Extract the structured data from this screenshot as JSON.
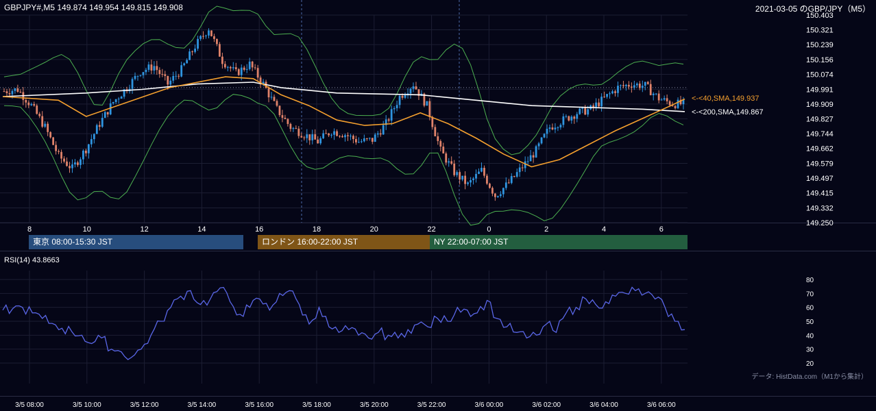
{
  "header": {
    "symbol_info": "GBPJPY#,M5 149.874 149.954 149.815 149.908",
    "title": "2021-03-05 のGBP/JPY（M5）"
  },
  "sessions": [
    {
      "label": "東京 08:00-15:30 JST",
      "color": "#274d7d"
    },
    {
      "label": "ロンドン 16:00-22:00 JST",
      "color": "#7f5517"
    },
    {
      "label": "NY 22:00-07:00 JST",
      "color": "#235e3f"
    }
  ],
  "rsi": {
    "title": "RSI(14) 43.8663"
  },
  "source_note": "データ: HistData.com（M1から集計）",
  "colors": {
    "background": "#050617",
    "up_candle": "#2f95e0",
    "down_candle": "#e0836a",
    "sma40": "#f5a02e",
    "sma200": "#ffffff",
    "bollinger": "#4caf50",
    "rsi_line": "#5a67e8",
    "grid": "#1c1e33"
  },
  "chart_data": [
    {
      "type": "candlestick",
      "title": "GBPJPY#,M5",
      "ylim": [
        149.25,
        150.403
      ],
      "y_ticks": [
        "150.403",
        "150.321",
        "150.239",
        "150.156",
        "150.074",
        "149.991",
        "149.909",
        "149.827",
        "149.744",
        "149.662",
        "149.579",
        "149.497",
        "149.415",
        "149.332",
        "149.250"
      ],
      "x_ticks": [
        "8",
        "10",
        "12",
        "14",
        "16",
        "18",
        "20",
        "22",
        "0",
        "2",
        "4",
        "6"
      ],
      "last_close": 149.908,
      "ma_labels": [
        {
          "label": "<-<40,SMA,149.937",
          "value": 149.937
        },
        {
          "label": "<-<200,SMA,149.867",
          "value": 149.867
        }
      ],
      "price_path": [
        [
          0,
          149.98
        ],
        [
          1,
          149.99
        ],
        [
          2,
          149.9
        ],
        [
          3,
          149.78
        ],
        [
          4,
          149.62
        ],
        [
          5,
          149.55
        ],
        [
          6,
          149.66
        ],
        [
          7,
          149.8
        ],
        [
          8,
          149.92
        ],
        [
          9,
          150.0
        ],
        [
          10,
          150.09
        ],
        [
          11,
          150.12
        ],
        [
          12,
          150.02
        ],
        [
          13,
          150.1
        ],
        [
          14,
          150.23
        ],
        [
          15,
          150.33
        ],
        [
          16,
          150.15
        ],
        [
          17,
          150.08
        ],
        [
          18,
          150.13
        ],
        [
          19,
          150.02
        ],
        [
          20,
          149.88
        ],
        [
          21,
          149.78
        ],
        [
          22,
          149.74
        ],
        [
          23,
          149.7
        ],
        [
          24,
          149.76
        ],
        [
          25,
          149.74
        ],
        [
          26,
          149.7
        ],
        [
          27,
          149.71
        ],
        [
          28,
          149.8
        ],
        [
          29,
          149.95
        ],
        [
          30,
          150.02
        ],
        [
          31,
          149.9
        ],
        [
          32,
          149.65
        ],
        [
          33,
          149.53
        ],
        [
          34,
          149.46
        ],
        [
          35,
          149.54
        ],
        [
          36,
          149.4
        ],
        [
          37,
          149.47
        ],
        [
          38,
          149.56
        ],
        [
          39,
          149.65
        ],
        [
          40,
          149.78
        ],
        [
          41,
          149.82
        ],
        [
          42,
          149.86
        ],
        [
          43,
          149.88
        ],
        [
          44,
          149.94
        ],
        [
          45,
          150.0
        ],
        [
          46,
          150.02
        ],
        [
          47,
          150.01
        ],
        [
          48,
          149.94
        ],
        [
          49,
          149.91
        ]
      ],
      "sma40": [
        [
          0,
          149.95
        ],
        [
          4,
          149.93
        ],
        [
          6,
          149.84
        ],
        [
          9,
          149.92
        ],
        [
          12,
          150.0
        ],
        [
          14,
          150.03
        ],
        [
          16,
          150.06
        ],
        [
          18,
          150.05
        ],
        [
          20,
          149.96
        ],
        [
          22,
          149.9
        ],
        [
          24,
          149.82
        ],
        [
          26,
          149.79
        ],
        [
          28,
          149.8
        ],
        [
          30,
          149.86
        ],
        [
          32,
          149.8
        ],
        [
          34,
          149.72
        ],
        [
          36,
          149.63
        ],
        [
          38,
          149.56
        ],
        [
          40,
          149.6
        ],
        [
          42,
          149.68
        ],
        [
          44,
          149.76
        ],
        [
          46,
          149.83
        ],
        [
          48,
          149.9
        ],
        [
          49,
          149.937
        ]
      ],
      "sma200": [
        [
          0,
          149.95
        ],
        [
          6,
          149.97
        ],
        [
          10,
          149.99
        ],
        [
          14,
          150.02
        ],
        [
          18,
          150.03
        ],
        [
          20,
          150.0
        ],
        [
          24,
          149.97
        ],
        [
          30,
          149.96
        ],
        [
          34,
          149.93
        ],
        [
          38,
          149.9
        ],
        [
          42,
          149.89
        ],
        [
          46,
          149.88
        ],
        [
          49,
          149.867
        ]
      ]
    },
    {
      "type": "line",
      "title": "RSI(14)",
      "ylim": [
        20,
        80
      ],
      "y_ticks": [
        20,
        30,
        40,
        50,
        60,
        70,
        80
      ],
      "x_ticks": [
        "3/5 08:00",
        "3/5 10:00",
        "3/5 12:00",
        "3/5 14:00",
        "3/5 16:00",
        "3/5 18:00",
        "3/5 20:00",
        "3/5 22:00",
        "3/6 00:00",
        "3/6 02:00",
        "3/6 04:00",
        "3/6 06:00"
      ],
      "last_value": 43.8663,
      "values_path": [
        [
          0,
          58
        ],
        [
          2,
          60
        ],
        [
          4,
          52
        ],
        [
          6,
          45
        ],
        [
          8,
          40
        ],
        [
          9,
          34
        ],
        [
          10,
          38
        ],
        [
          11,
          30
        ],
        [
          12,
          28
        ],
        [
          13,
          24
        ],
        [
          14,
          30
        ],
        [
          15,
          40
        ],
        [
          16,
          50
        ],
        [
          17,
          60
        ],
        [
          18,
          68
        ],
        [
          19,
          72
        ],
        [
          20,
          62
        ],
        [
          21,
          66
        ],
        [
          22,
          74
        ],
        [
          23,
          64
        ],
        [
          24,
          55
        ],
        [
          25,
          60
        ],
        [
          26,
          66
        ],
        [
          27,
          58
        ],
        [
          28,
          70
        ],
        [
          29,
          72
        ],
        [
          30,
          62
        ],
        [
          31,
          48
        ],
        [
          32,
          60
        ],
        [
          33,
          46
        ],
        [
          34,
          42
        ],
        [
          35,
          44
        ],
        [
          36,
          40
        ],
        [
          37,
          38
        ],
        [
          38,
          42
        ],
        [
          39,
          40
        ],
        [
          40,
          38
        ],
        [
          41,
          44
        ],
        [
          42,
          48
        ],
        [
          43,
          46
        ],
        [
          44,
          52
        ],
        [
          45,
          50
        ],
        [
          46,
          60
        ],
        [
          47,
          58
        ],
        [
          48,
          56
        ],
        [
          49,
          65
        ],
        [
          50,
          52
        ],
        [
          51,
          46
        ],
        [
          52,
          42
        ],
        [
          53,
          38
        ],
        [
          54,
          40
        ],
        [
          55,
          48
        ],
        [
          56,
          42
        ],
        [
          57,
          56
        ],
        [
          58,
          60
        ],
        [
          59,
          66
        ],
        [
          60,
          62
        ],
        [
          61,
          64
        ],
        [
          62,
          68
        ],
        [
          63,
          70
        ],
        [
          64,
          72
        ],
        [
          65,
          70
        ],
        [
          66,
          66
        ],
        [
          67,
          60
        ],
        [
          68,
          50
        ],
        [
          69,
          44
        ]
      ]
    }
  ]
}
